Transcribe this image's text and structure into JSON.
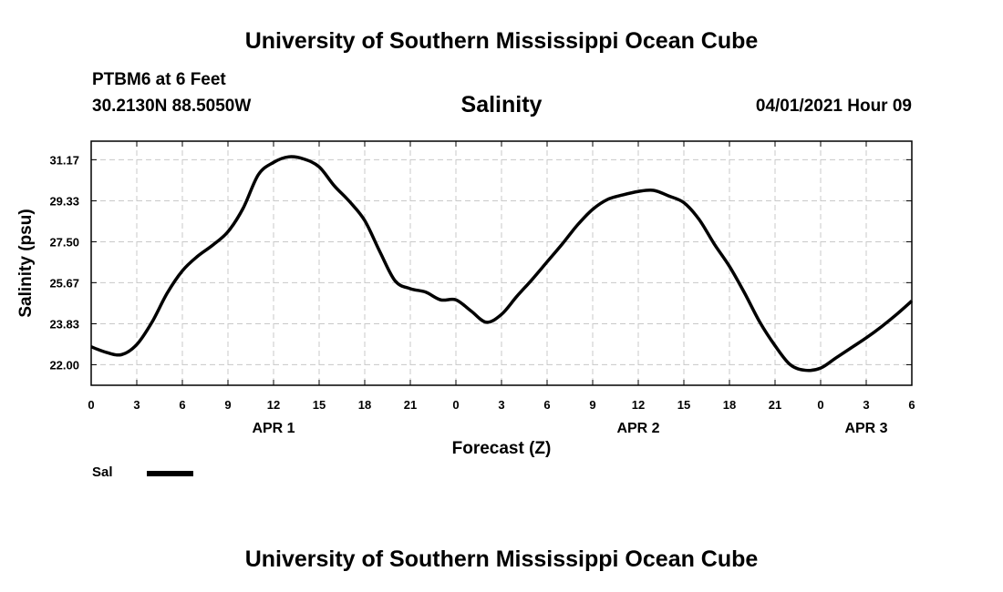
{
  "header": {
    "title": "University of Southern Mississippi Ocean Cube",
    "station": "PTBM6 at 6 Feet",
    "coordinates": "30.2130N  88.5050W",
    "chart_title": "Salinity",
    "datetime": "04/01/2021 Hour 09"
  },
  "footer": {
    "title": "University of Southern Mississippi Ocean Cube"
  },
  "legend": {
    "label": "Sal"
  },
  "chart_data": {
    "type": "line",
    "title": "Salinity",
    "xlabel": "Forecast (Z)",
    "ylabel": "Salinity (psu)",
    "x_unit": "hours since APR 1 00Z",
    "xlim": [
      0,
      54
    ],
    "ylim": [
      21.08,
      32.0
    ],
    "x_ticks": [
      0,
      3,
      6,
      9,
      12,
      15,
      18,
      21,
      24,
      27,
      30,
      33,
      36,
      39,
      42,
      45,
      48,
      51,
      54
    ],
    "x_tick_labels": [
      "0",
      "3",
      "6",
      "9",
      "12",
      "15",
      "18",
      "21",
      "0",
      "3",
      "6",
      "9",
      "12",
      "15",
      "18",
      "21",
      "0",
      "3",
      "6"
    ],
    "y_ticks": [
      22.0,
      23.83,
      25.67,
      27.5,
      29.33,
      31.17
    ],
    "y_tick_labels": [
      "22.00",
      "23.83",
      "25.67",
      "27.50",
      "29.33",
      "31.17"
    ],
    "date_labels": [
      {
        "x": 12,
        "label": "APR 1"
      },
      {
        "x": 36,
        "label": "APR 2"
      },
      {
        "x": 51,
        "label": "APR 3"
      }
    ],
    "grid": true,
    "legend_position": "bottom-left",
    "series": [
      {
        "name": "Sal",
        "color": "#000000",
        "x": [
          0,
          1,
          2,
          3,
          4,
          5,
          6,
          7,
          8,
          9,
          10,
          11,
          12,
          13,
          14,
          15,
          16,
          17,
          18,
          19,
          20,
          21,
          22,
          23,
          24,
          25,
          26,
          27,
          28,
          29,
          30,
          31,
          32,
          33,
          34,
          35,
          36,
          37,
          38,
          39,
          40,
          41,
          42,
          43,
          44,
          45,
          46,
          47,
          48,
          49,
          50,
          51,
          52,
          53,
          54
        ],
        "values": [
          22.8,
          22.55,
          22.45,
          22.9,
          23.9,
          25.2,
          26.2,
          26.85,
          27.35,
          27.95,
          29.0,
          30.5,
          31.05,
          31.3,
          31.2,
          30.85,
          30.0,
          29.3,
          28.45,
          27.05,
          25.75,
          25.4,
          25.25,
          24.9,
          24.9,
          24.4,
          23.9,
          24.25,
          25.05,
          25.8,
          26.6,
          27.4,
          28.25,
          28.95,
          29.4,
          29.6,
          29.75,
          29.8,
          29.55,
          29.25,
          28.5,
          27.4,
          26.4,
          25.2,
          23.9,
          22.85,
          22.0,
          21.75,
          21.85,
          22.3,
          22.75,
          23.2,
          23.7,
          24.25,
          24.85
        ]
      }
    ]
  }
}
